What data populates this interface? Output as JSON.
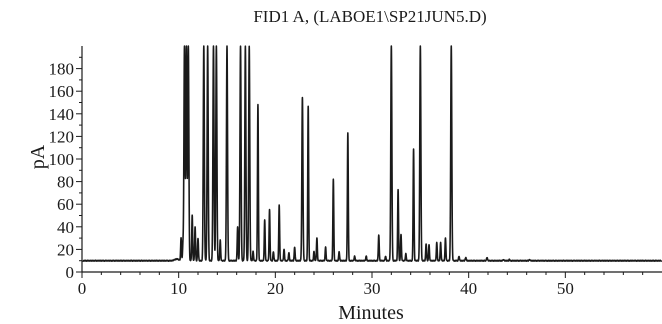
{
  "chart_data": {
    "type": "line",
    "title": "FID1 A, (LABOE1\\SP21JUN5.D)",
    "xlabel": "Minutes",
    "ylabel": "pA",
    "xlim": [
      0,
      60
    ],
    "ylim": [
      0,
      200
    ],
    "x_ticks": [
      0,
      10,
      20,
      30,
      40,
      50
    ],
    "y_ticks": [
      0,
      20,
      40,
      60,
      80,
      100,
      120,
      140,
      160,
      180
    ],
    "baseline": 10,
    "grid": false,
    "legend": "none",
    "line_color": "#1a1a1a",
    "series": [
      {
        "peaks": [
          [
            10.25,
            30
          ],
          [
            10.45,
            25
          ],
          [
            10.6,
            200
          ],
          [
            10.8,
            200
          ],
          [
            11.0,
            200
          ],
          [
            11.4,
            50
          ],
          [
            11.7,
            40
          ],
          [
            12.0,
            30
          ],
          [
            12.6,
            200
          ],
          [
            13.0,
            200
          ],
          [
            13.6,
            200
          ],
          [
            13.9,
            200
          ],
          [
            14.3,
            28
          ],
          [
            15.0,
            200
          ],
          [
            16.1,
            40
          ],
          [
            16.4,
            200
          ],
          [
            16.9,
            200
          ],
          [
            17.3,
            200
          ],
          [
            17.7,
            18
          ],
          [
            18.2,
            148
          ],
          [
            18.9,
            46
          ],
          [
            19.4,
            55
          ],
          [
            19.8,
            18
          ],
          [
            20.4,
            59
          ],
          [
            20.9,
            20
          ],
          [
            21.4,
            17
          ],
          [
            22.0,
            22
          ],
          [
            22.8,
            154
          ],
          [
            23.4,
            147
          ],
          [
            24.0,
            18
          ],
          [
            24.3,
            30
          ],
          [
            25.2,
            22
          ],
          [
            26.0,
            82
          ],
          [
            26.6,
            18
          ],
          [
            27.5,
            123
          ],
          [
            28.2,
            14
          ],
          [
            29.4,
            14
          ],
          [
            30.7,
            33
          ],
          [
            31.4,
            14
          ],
          [
            32.0,
            200
          ],
          [
            32.7,
            73
          ],
          [
            33.0,
            33
          ],
          [
            33.5,
            16
          ],
          [
            34.3,
            109
          ],
          [
            35.0,
            200
          ],
          [
            35.6,
            25
          ],
          [
            35.9,
            24
          ],
          [
            36.7,
            26
          ],
          [
            37.1,
            26
          ],
          [
            37.6,
            30
          ],
          [
            38.2,
            200
          ],
          [
            39.0,
            14
          ],
          [
            39.7,
            13
          ],
          [
            41.9,
            13
          ],
          [
            43.6,
            11
          ],
          [
            44.2,
            11
          ],
          [
            46.3,
            11
          ]
        ]
      }
    ]
  }
}
